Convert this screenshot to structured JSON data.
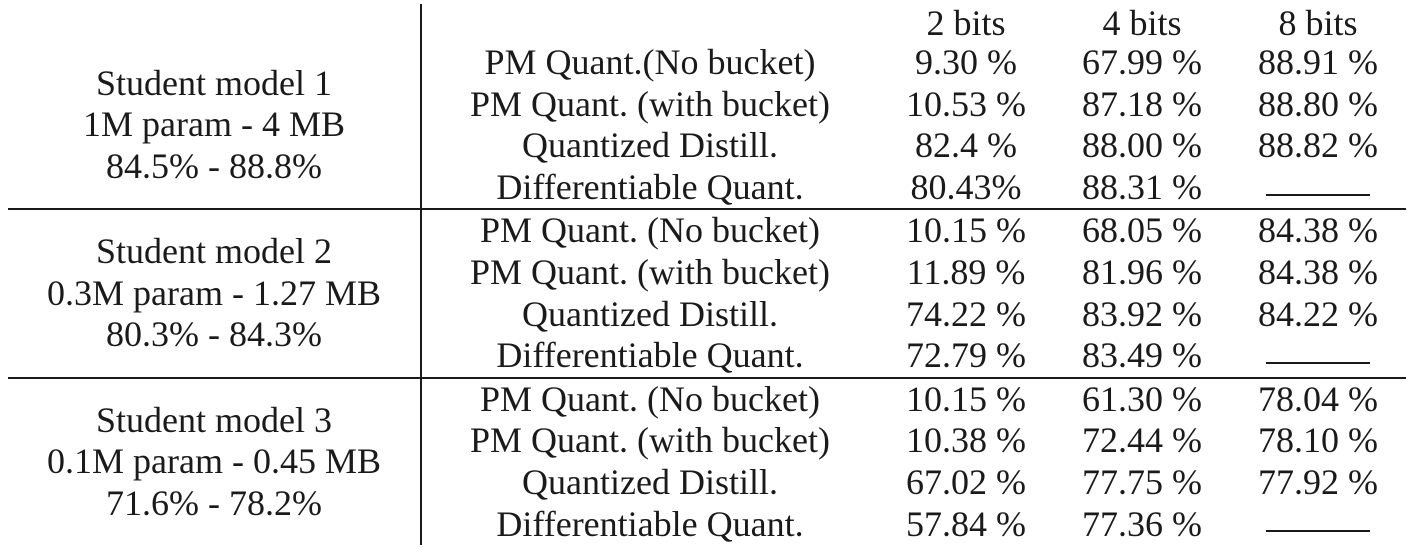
{
  "table": {
    "columns": [
      "2 bits",
      "4 bits",
      "8 bits"
    ],
    "groups": [
      {
        "model": [
          "Student model 1",
          "1M param - 4 MB",
          "84.5% - 88.8%"
        ],
        "rows": [
          {
            "method": "PM Quant.(No bucket)",
            "b2": "9.30 %",
            "b4": "67.99 %",
            "b8": "88.91 %"
          },
          {
            "method": "PM Quant. (with bucket)",
            "b2": "10.53 %",
            "b4": "87.18 %",
            "b8": "88.80 %"
          },
          {
            "method": "Quantized Distill.",
            "b2": "82.4 %",
            "b4": "88.00 %",
            "b8": "88.82 %"
          },
          {
            "method": "Differentiable Quant.",
            "b2": "80.43%",
            "b4": "88.31 %",
            "b8": null
          }
        ]
      },
      {
        "model": [
          "Student model 2",
          "0.3M param - 1.27 MB",
          "80.3% - 84.3%"
        ],
        "rows": [
          {
            "method": "PM Quant. (No bucket)",
            "b2": "10.15 %",
            "b4": "68.05 %",
            "b8": "84.38 %"
          },
          {
            "method": "PM Quant. (with bucket)",
            "b2": "11.89 %",
            "b4": "81.96 %",
            "b8": "84.38 %"
          },
          {
            "method": "Quantized Distill.",
            "b2": "74.22 %",
            "b4": "83.92 %",
            "b8": "84.22 %"
          },
          {
            "method": "Differentiable Quant.",
            "b2": "72.79 %",
            "b4": "83.49 %",
            "b8": null
          }
        ]
      },
      {
        "model": [
          "Student model 3",
          "0.1M param - 0.45 MB",
          "71.6% - 78.2%"
        ],
        "rows": [
          {
            "method": "PM Quant. (No bucket)",
            "b2": "10.15 %",
            "b4": "61.30 %",
            "b8": "78.04 %"
          },
          {
            "method": "PM Quant. (with bucket)",
            "b2": "10.38 %",
            "b4": "72.44 %",
            "b8": "78.10 %"
          },
          {
            "method": "Quantized Distill.",
            "b2": "67.02 %",
            "b4": "77.75 %",
            "b8": "77.92 %"
          },
          {
            "method": "Differentiable Quant.",
            "b2": "57.84 %",
            "b4": "77.36 %",
            "b8": null
          }
        ]
      }
    ]
  }
}
